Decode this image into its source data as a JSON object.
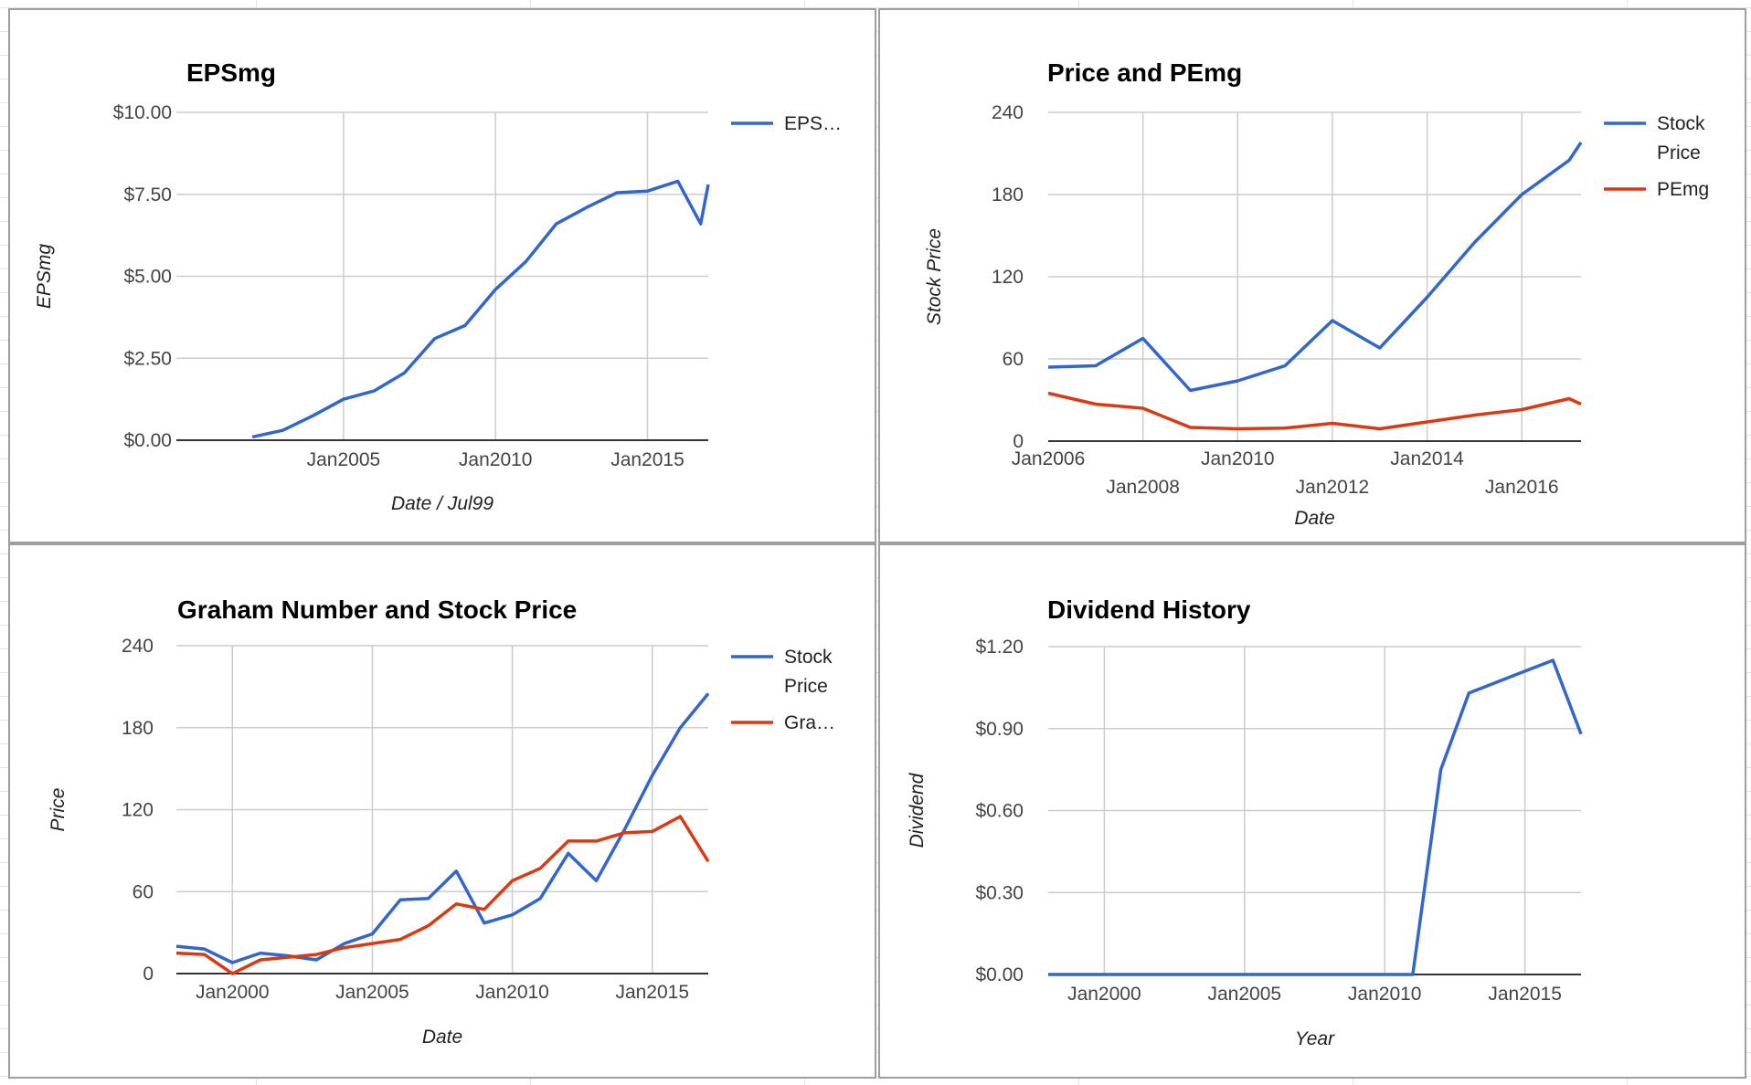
{
  "chart_data": [
    {
      "type": "line",
      "title": "EPSmg",
      "xlabel": "Date / Jul99",
      "ylabel": "EPSmg",
      "x_ticks": [
        "Jan2005",
        "Jan2010",
        "Jan2015"
      ],
      "y_ticks": [
        "$0.00",
        "$2.50",
        "$5.00",
        "$7.50",
        "$10.00"
      ],
      "ylim": [
        0,
        10
      ],
      "legend_position": "right",
      "grid": true,
      "series": [
        {
          "name": "EPS…",
          "color": "#3366cc",
          "x": [
            "2002-01",
            "2003-01",
            "2004-01",
            "2005-01",
            "2006-01",
            "2007-01",
            "2008-01",
            "2009-01",
            "2010-01",
            "2011-01",
            "2012-01",
            "2013-01",
            "2014-01",
            "2015-01",
            "2016-01",
            "2016-10",
            "2017-01"
          ],
          "values": [
            0.1,
            0.3,
            0.75,
            1.25,
            1.5,
            2.05,
            3.1,
            3.5,
            4.6,
            5.45,
            6.6,
            7.1,
            7.55,
            7.6,
            7.9,
            6.6,
            7.8
          ]
        }
      ]
    },
    {
      "type": "line",
      "title": "Price and PEmg",
      "xlabel": "Date",
      "ylabel": "Stock Price",
      "x_ticks_row1": [
        "Jan2006",
        "Jan2010",
        "Jan2014"
      ],
      "x_ticks_row2": [
        "Jan2008",
        "Jan2012",
        "Jan2016"
      ],
      "y_ticks": [
        "0",
        "60",
        "120",
        "180",
        "240"
      ],
      "ylim": [
        0,
        240
      ],
      "legend_position": "right",
      "grid": true,
      "series": [
        {
          "name": "Stock Price",
          "color": "#3366cc",
          "x": [
            "2006-01",
            "2007-01",
            "2008-01",
            "2009-01",
            "2010-01",
            "2011-01",
            "2012-01",
            "2013-01",
            "2014-01",
            "2015-01",
            "2016-01",
            "2017-01",
            "2017-04"
          ],
          "values": [
            54,
            55,
            75,
            37,
            44,
            55,
            88,
            68,
            105,
            145,
            180,
            205,
            218
          ]
        },
        {
          "name": "PEmg",
          "color": "#dc3912",
          "x": [
            "2006-01",
            "2007-01",
            "2008-01",
            "2009-01",
            "2010-01",
            "2011-01",
            "2012-01",
            "2013-01",
            "2014-01",
            "2015-01",
            "2016-01",
            "2017-01",
            "2017-04"
          ],
          "values": [
            35,
            27,
            24,
            10,
            9,
            9.5,
            13,
            9,
            14,
            19,
            23,
            31,
            27
          ]
        }
      ]
    },
    {
      "type": "line",
      "title": "Graham Number and Stock Price",
      "xlabel": "Date",
      "ylabel": "Price",
      "x_ticks": [
        "Jan2000",
        "Jan2005",
        "Jan2010",
        "Jan2015"
      ],
      "y_ticks": [
        "0",
        "60",
        "120",
        "180",
        "240"
      ],
      "ylim": [
        0,
        240
      ],
      "legend_position": "right",
      "grid": true,
      "series": [
        {
          "name": "Stock Price",
          "color": "#3366cc",
          "x": [
            "1998-01",
            "1999-01",
            "2000-01",
            "2001-01",
            "2002-01",
            "2003-01",
            "2004-01",
            "2005-01",
            "2006-01",
            "2007-01",
            "2008-01",
            "2009-01",
            "2010-01",
            "2011-01",
            "2012-01",
            "2013-01",
            "2014-01",
            "2015-01",
            "2016-01",
            "2017-01"
          ],
          "values": [
            20,
            18,
            8,
            15,
            13,
            10,
            22,
            29,
            54,
            55,
            75,
            37,
            43,
            55,
            88,
            68,
            105,
            145,
            180,
            205
          ]
        },
        {
          "name": "Gra…",
          "color": "#dc3912",
          "x": [
            "1998-01",
            "1999-01",
            "2000-01",
            "2001-01",
            "2002-01",
            "2003-01",
            "2004-01",
            "2005-01",
            "2006-01",
            "2007-01",
            "2008-01",
            "2009-01",
            "2010-01",
            "2011-01",
            "2012-01",
            "2013-01",
            "2014-01",
            "2015-01",
            "2016-01",
            "2017-01"
          ],
          "values": [
            15,
            14,
            0,
            10,
            12,
            14,
            19,
            22,
            25,
            35,
            51,
            47,
            68,
            77,
            97,
            97,
            103,
            104,
            115,
            82
          ]
        }
      ]
    },
    {
      "type": "line",
      "title": "Dividend History",
      "xlabel": "Year",
      "ylabel": "Dividend",
      "x_ticks": [
        "Jan2000",
        "Jan2005",
        "Jan2010",
        "Jan2015"
      ],
      "y_ticks": [
        "$0.00",
        "$0.30",
        "$0.60",
        "$0.90",
        "$1.20"
      ],
      "ylim": [
        0,
        1.2
      ],
      "legend_position": "none",
      "grid": true,
      "series": [
        {
          "color": "#3366cc",
          "x": [
            "1998-01",
            "2000-01",
            "2005-01",
            "2010-01",
            "2011-01",
            "2012-01",
            "2013-01",
            "2014-01",
            "2015-01",
            "2016-01",
            "2017-01"
          ],
          "values": [
            0,
            0,
            0,
            0,
            0,
            0.75,
            1.03,
            1.07,
            1.11,
            1.15,
            0.88
          ]
        }
      ]
    }
  ]
}
